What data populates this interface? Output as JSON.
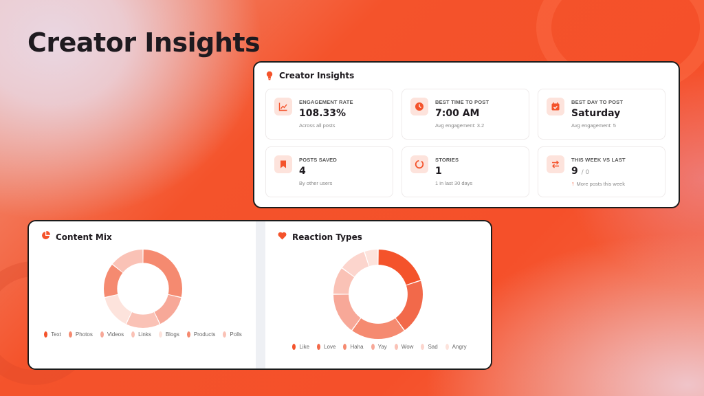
{
  "page": {
    "title": "Creator Insights"
  },
  "insights": {
    "title": "Creator Insights",
    "cards": [
      {
        "icon": "trending-chart-icon",
        "label": "ENGAGEMENT RATE",
        "value": "108.33%",
        "note": "Across all posts"
      },
      {
        "icon": "clock-icon",
        "label": "BEST TIME TO POST",
        "value": "7:00 AM",
        "note": "Avg engagement: 3.2"
      },
      {
        "icon": "calendar-check-icon",
        "label": "BEST DAY TO POST",
        "value": "Saturday",
        "note": "Avg engagement: 5"
      },
      {
        "icon": "bookmark-icon",
        "label": "POSTS SAVED",
        "value": "4",
        "note": "By other users"
      },
      {
        "icon": "circle-dashed-icon",
        "label": "STORIES",
        "value": "1",
        "note": "1 in last 30 days"
      },
      {
        "icon": "arrows-swap-icon",
        "label": "THIS WEEK VS LAST",
        "value": "9",
        "value_sub": "/ 0",
        "note": "More posts this week",
        "note_arrow": "↑"
      }
    ]
  },
  "content_mix": {
    "title": "Content Mix",
    "icon": "pie-chart-icon"
  },
  "reaction_types": {
    "title": "Reaction Types",
    "icon": "heart-icon"
  },
  "colors": {
    "accent": "#f4532b",
    "icon_bg": "#fde3dc"
  },
  "chart_data": [
    {
      "type": "pie",
      "title": "Content Mix",
      "categories": [
        "Text",
        "Photos",
        "Videos",
        "Links",
        "Blogs",
        "Products",
        "Polls"
      ],
      "values": [
        0,
        2,
        1,
        1,
        1,
        1,
        1
      ],
      "colors": [
        "#f4532b",
        "#f58a70",
        "#f7a898",
        "#fac2b6",
        "#fde3dc",
        "#f58a70",
        "#fac2b6"
      ]
    },
    {
      "type": "pie",
      "title": "Reaction Types",
      "categories": [
        "Like",
        "Love",
        "Haha",
        "Yay",
        "Wow",
        "Sad",
        "Angry"
      ],
      "values": [
        2,
        2,
        2,
        1.5,
        1,
        1,
        0.5
      ],
      "colors": [
        "#f4532b",
        "#f2694a",
        "#f58a70",
        "#f7a898",
        "#fac2b6",
        "#fcd5cd",
        "#fde3dc"
      ]
    }
  ]
}
